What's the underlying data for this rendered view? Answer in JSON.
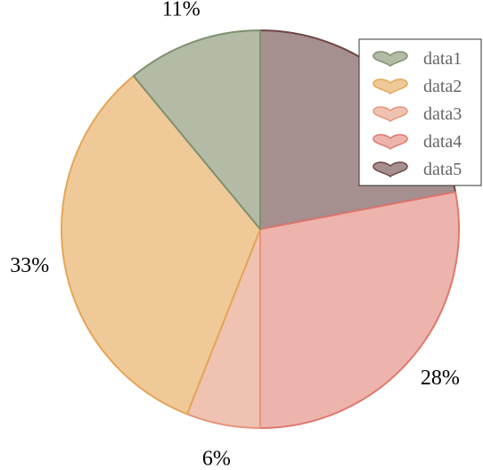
{
  "chart_data": {
    "type": "pie",
    "title": "",
    "start": "top",
    "direction": "clockwise",
    "legend_position": "top-right",
    "legend_marker": "heart",
    "slices": [
      {
        "name": "data5",
        "value": 22,
        "label": "",
        "fill": "#a68f8f",
        "stroke": "#6e4747"
      },
      {
        "name": "data4",
        "value": 28,
        "label": "28%",
        "fill": "#edb4ae",
        "stroke": "#e0786e"
      },
      {
        "name": "data3",
        "value": 6,
        "label": "6%",
        "fill": "#efc2b2",
        "stroke": "#e5957a"
      },
      {
        "name": "data2",
        "value": 33,
        "label": "33%",
        "fill": "#f0c998",
        "stroke": "#e4a657"
      },
      {
        "name": "data1",
        "value": 11,
        "label": "11%",
        "fill": "#b3baa6",
        "stroke": "#7f9170"
      }
    ],
    "legend": [
      "data1",
      "data2",
      "data3",
      "data4",
      "data5"
    ]
  }
}
